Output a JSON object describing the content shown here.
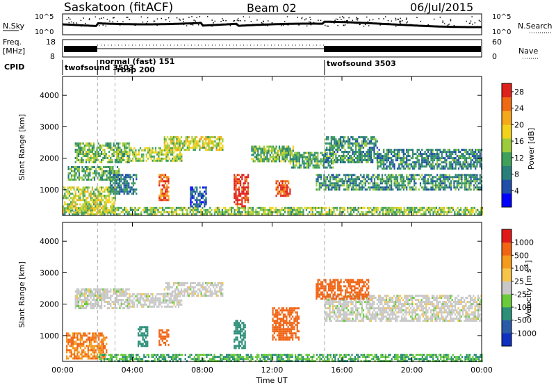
{
  "header": {
    "station": "Saskatoon (fitACF)",
    "beam": "Beam 02",
    "date": "06/Jul/2015"
  },
  "sky_panel": {
    "left_label": "N.Sky",
    "right_label": "N.Search",
    "left_ticks": [
      "10^5",
      "10^0"
    ],
    "right_ticks": [
      "10^5",
      "10^0"
    ]
  },
  "freq_panel": {
    "left_label_1": "Freq.",
    "left_label_2": "[MHz]",
    "right_label": "Nave",
    "left_ticks": [
      "18",
      "8"
    ],
    "right_ticks": [
      "60",
      "0"
    ]
  },
  "cpid": {
    "label": "CPID",
    "segments": [
      {
        "start_hour": 0.0,
        "label": "twofsound 3503"
      },
      {
        "start_hour": 2.0,
        "label": "normal (fast) 151"
      },
      {
        "start_hour": 3.0,
        "label": "rbsp 200"
      },
      {
        "start_hour": 15.0,
        "label": "twofsound 3503"
      }
    ]
  },
  "chart_data": [
    {
      "type": "heatmap",
      "name": "power-panel",
      "x_range_hours": [
        0,
        24
      ],
      "ylabel": "Slant Range [km]",
      "ylim": [
        180,
        4600
      ],
      "yticks": [
        1000,
        2000,
        3000,
        4000
      ],
      "colorbar": {
        "label": "Power [dB]",
        "ticks": [
          4,
          8,
          12,
          16,
          20,
          24,
          28
        ],
        "range": [
          0,
          30
        ],
        "colors": [
          "#0000ff",
          "#1f4fa8",
          "#2a7f7a",
          "#3fa05a",
          "#9ccc3c",
          "#f2d21c",
          "#f5a81c",
          "#f06a14",
          "#e0201a"
        ]
      },
      "bands": [
        {
          "x0": 0.7,
          "x1": 3.8,
          "y0": 1850,
          "y1": 2500,
          "value": 13
        },
        {
          "x0": 0.3,
          "x1": 3.2,
          "y0": 1300,
          "y1": 1750,
          "value": 12
        },
        {
          "x0": 3.8,
          "x1": 6.8,
          "y0": 1900,
          "y1": 2350,
          "value": 15
        },
        {
          "x0": 5.8,
          "x1": 9.2,
          "y0": 2300,
          "y1": 2700,
          "value": 17
        },
        {
          "x0": 10.8,
          "x1": 13.2,
          "y0": 1900,
          "y1": 2400,
          "value": 13
        },
        {
          "x0": 13.0,
          "x1": 15.5,
          "y0": 1700,
          "y1": 2200,
          "value": 12
        },
        {
          "x0": 15.0,
          "x1": 18.0,
          "y0": 1900,
          "y1": 2700,
          "value": 10
        },
        {
          "x0": 18.0,
          "x1": 24.0,
          "y0": 1700,
          "y1": 2300,
          "value": 9
        },
        {
          "x0": 14.5,
          "x1": 24.0,
          "y0": 1000,
          "y1": 1500,
          "value": 10
        },
        {
          "x0": 0.0,
          "x1": 24.0,
          "y0": 200,
          "y1": 450,
          "value": 14
        },
        {
          "x0": 0.0,
          "x1": 3.0,
          "y0": 250,
          "y1": 1100,
          "value": 16
        },
        {
          "x0": 5.5,
          "x1": 6.1,
          "y0": 700,
          "y1": 1500,
          "value": 25
        },
        {
          "x0": 9.8,
          "x1": 10.6,
          "y0": 500,
          "y1": 1500,
          "value": 28
        },
        {
          "x0": 12.2,
          "x1": 13.0,
          "y0": 800,
          "y1": 1300,
          "value": 27
        },
        {
          "x0": 2.7,
          "x1": 4.2,
          "y0": 900,
          "y1": 1500,
          "value": 8
        },
        {
          "x0": 7.3,
          "x1": 8.2,
          "y0": 500,
          "y1": 1100,
          "value": 6
        }
      ]
    },
    {
      "type": "heatmap",
      "name": "velocity-panel",
      "x_range_hours": [
        0,
        24
      ],
      "xlabel": "Time UT",
      "xticks": [
        "00:00",
        "04:00",
        "08:00",
        "12:00",
        "16:00",
        "20:00",
        "00:00"
      ],
      "ylabel": "Slant Range [km]",
      "ylim": [
        180,
        4600
      ],
      "yticks": [
        1000,
        2000,
        3000,
        4000
      ],
      "colorbar": {
        "label": "Velocity [m s^-1]",
        "ticks": [
          "1000",
          "500",
          "100",
          "25",
          "-25",
          "-100",
          "-500",
          "-1000"
        ],
        "colors": [
          "#1030c0",
          "#2a5aa8",
          "#2c8f78",
          "#6acb3a",
          "#c8c8c8",
          "#f7c44a",
          "#f59a1c",
          "#f06414",
          "#e01818"
        ]
      },
      "bands": [
        {
          "x0": 0.7,
          "x1": 3.8,
          "y0": 1850,
          "y1": 2500,
          "value": 0
        },
        {
          "x0": 3.8,
          "x1": 6.8,
          "y0": 1900,
          "y1": 2350,
          "value": 0
        },
        {
          "x0": 5.8,
          "x1": 9.2,
          "y0": 2300,
          "y1": 2700,
          "value": 0
        },
        {
          "x0": 15.0,
          "x1": 24.0,
          "y0": 1500,
          "y1": 2300,
          "value": 0
        },
        {
          "x0": 14.5,
          "x1": 17.5,
          "y0": 2200,
          "y1": 2800,
          "value": -300
        },
        {
          "x0": 12.0,
          "x1": 13.5,
          "y0": 900,
          "y1": 1900,
          "value": -300
        },
        {
          "x0": 0.2,
          "x1": 2.5,
          "y0": 300,
          "y1": 1100,
          "value": -250
        },
        {
          "x0": 4.3,
          "x1": 4.9,
          "y0": 700,
          "y1": 1300,
          "value": 150
        },
        {
          "x0": 9.8,
          "x1": 10.5,
          "y0": 600,
          "y1": 1500,
          "value": 200
        },
        {
          "x0": 5.5,
          "x1": 6.1,
          "y0": 700,
          "y1": 1200,
          "value": -400
        },
        {
          "x0": 2.0,
          "x1": 24.0,
          "y0": 180,
          "y1": 420,
          "value": 60
        }
      ]
    }
  ]
}
